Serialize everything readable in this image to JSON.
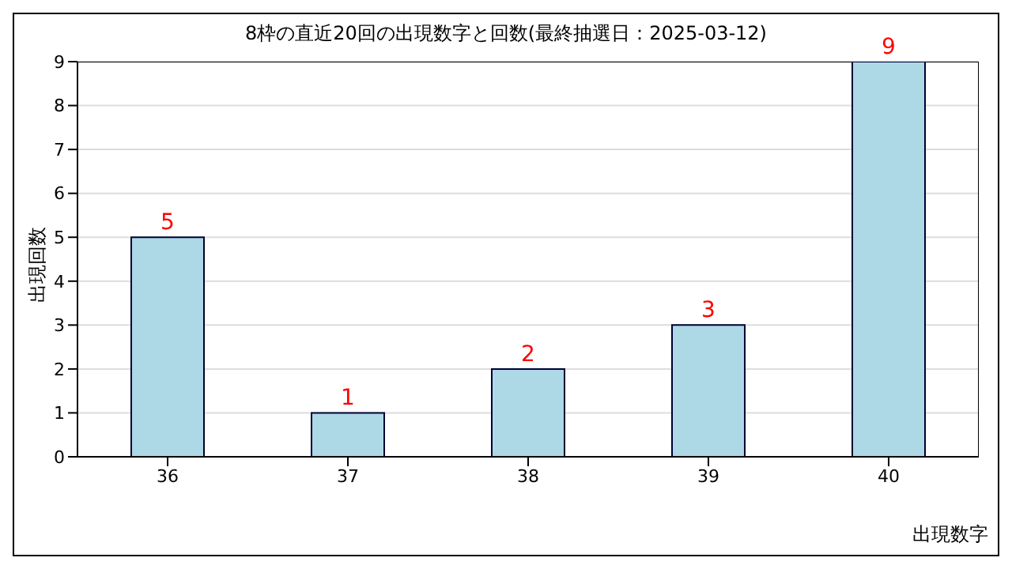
{
  "chart_data": {
    "type": "bar",
    "title": "8枠の直近20回の出現数字と回数(最終抽選日：2025-03-12)",
    "xlabel": "出現数字",
    "ylabel": "出現回数",
    "categories": [
      "36",
      "37",
      "38",
      "39",
      "40"
    ],
    "values": [
      5,
      1,
      2,
      3,
      9
    ],
    "color": "#add8e6",
    "ylim": [
      0,
      9
    ],
    "yticks": [
      0,
      1,
      2,
      3,
      4,
      5,
      6,
      7,
      8,
      9
    ],
    "grid": "y",
    "data_labels": true
  }
}
